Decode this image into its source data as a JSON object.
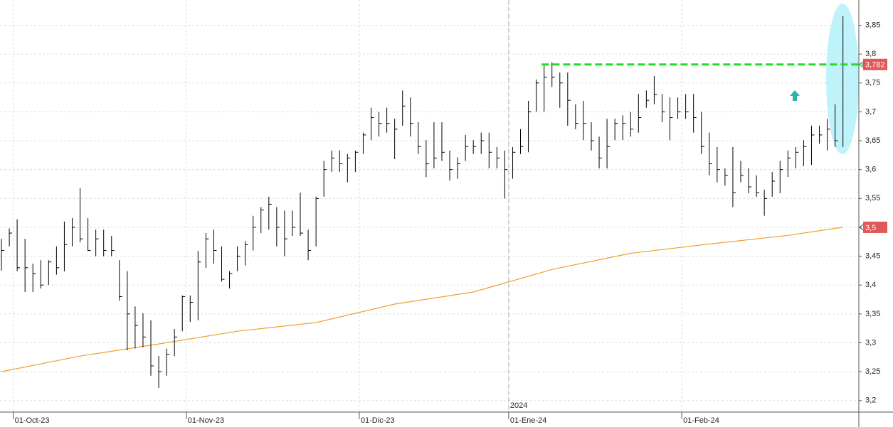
{
  "chart_data": {
    "type": "hlc",
    "color": "#000000",
    "high": [
      3.48,
      3.498,
      3.514,
      3.48,
      3.437,
      3.443,
      3.443,
      3.467,
      3.51,
      3.516,
      3.568,
      3.516,
      3.496,
      3.496,
      3.485,
      3.443,
      3.424,
      3.363,
      3.351,
      3.339,
      3.277,
      3.29,
      3.324,
      3.382,
      3.382,
      3.459,
      3.49,
      3.496,
      3.467,
      3.424,
      3.467,
      3.476,
      3.52,
      3.535,
      3.553,
      3.535,
      3.529,
      3.529,
      3.56,
      3.496,
      3.553,
      3.615,
      3.633,
      3.633,
      3.627,
      3.633,
      3.664,
      3.707,
      3.7,
      3.707,
      3.688,
      3.737,
      3.725,
      3.682,
      3.651,
      3.682,
      3.682,
      3.633,
      3.621,
      3.66,
      3.651,
      3.664,
      3.664,
      3.639,
      3.633,
      3.639,
      3.67,
      3.719,
      3.756,
      3.78,
      3.786,
      3.768,
      3.768,
      3.713,
      3.719,
      3.682,
      3.657,
      3.688,
      3.688,
      3.694,
      3.7,
      3.731,
      3.737,
      3.762,
      3.731,
      3.725,
      3.725,
      3.731,
      3.731,
      3.7,
      3.664,
      3.639,
      3.602,
      3.639,
      3.615,
      3.602,
      3.59,
      3.565,
      3.596,
      3.615,
      3.633,
      3.639,
      3.651,
      3.676,
      3.676,
      3.688,
      3.713,
      3.866
    ],
    "low": [
      3.425,
      3.467,
      3.424,
      3.388,
      3.388,
      3.394,
      3.4,
      3.418,
      3.424,
      3.467,
      3.474,
      3.459,
      3.45,
      3.45,
      3.45,
      3.373,
      3.287,
      3.29,
      3.292,
      3.243,
      3.222,
      3.243,
      3.277,
      3.32,
      3.336,
      3.339,
      3.43,
      3.437,
      3.406,
      3.394,
      3.424,
      3.434,
      3.46,
      3.49,
      3.496,
      3.467,
      3.45,
      3.485,
      3.485,
      3.443,
      3.467,
      3.553,
      3.596,
      3.596,
      3.578,
      3.596,
      3.627,
      3.651,
      3.657,
      3.664,
      3.618,
      3.676,
      3.657,
      3.627,
      3.587,
      3.602,
      3.615,
      3.581,
      3.584,
      3.615,
      3.627,
      3.627,
      3.602,
      3.602,
      3.55,
      3.584,
      3.627,
      3.63,
      3.7,
      3.7,
      3.743,
      3.707,
      3.676,
      3.67,
      3.651,
      3.633,
      3.602,
      3.602,
      3.651,
      3.651,
      3.657,
      3.664,
      3.707,
      3.713,
      3.682,
      3.651,
      3.688,
      3.688,
      3.664,
      3.627,
      3.59,
      3.578,
      3.572,
      3.535,
      3.578,
      3.559,
      3.553,
      3.52,
      3.553,
      3.559,
      3.587,
      3.602,
      3.606,
      3.608,
      3.645,
      3.633,
      3.639,
      3.639
    ],
    "close": [
      3.46,
      3.49,
      3.43,
      3.43,
      3.42,
      3.4,
      3.44,
      3.43,
      3.47,
      3.5,
      3.48,
      3.46,
      3.48,
      3.46,
      3.46,
      3.38,
      3.35,
      3.33,
      3.31,
      3.26,
      3.25,
      3.28,
      3.31,
      3.38,
      3.37,
      3.44,
      3.48,
      3.46,
      3.41,
      3.42,
      3.45,
      3.47,
      3.5,
      3.53,
      3.54,
      3.5,
      3.48,
      3.5,
      3.49,
      3.46,
      3.55,
      3.6,
      3.62,
      3.61,
      3.62,
      3.63,
      3.66,
      3.69,
      3.68,
      3.68,
      3.67,
      3.71,
      3.68,
      3.64,
      3.61,
      3.62,
      3.63,
      3.6,
      3.61,
      3.64,
      3.64,
      3.65,
      3.63,
      3.62,
      3.6,
      3.63,
      3.64,
      3.7,
      3.75,
      3.76,
      3.76,
      3.75,
      3.72,
      3.68,
      3.68,
      3.65,
      3.62,
      3.64,
      3.68,
      3.68,
      3.67,
      3.69,
      3.72,
      3.73,
      3.7,
      3.69,
      3.7,
      3.7,
      3.69,
      3.64,
      3.61,
      3.6,
      3.59,
      3.56,
      3.59,
      3.57,
      3.56,
      3.55,
      3.58,
      3.6,
      3.62,
      3.63,
      3.64,
      3.66,
      3.66,
      3.67,
      3.65,
      3.782
    ],
    "moving_average": {
      "color": "#f0a030",
      "x": [
        0,
        10,
        20,
        30,
        40,
        50,
        60,
        70,
        80,
        90,
        100,
        107
      ],
      "values": [
        3.25,
        3.277,
        3.298,
        3.32,
        3.335,
        3.367,
        3.388,
        3.427,
        3.455,
        3.471,
        3.486,
        3.5
      ]
    },
    "resistance": {
      "value": 3.782,
      "color": "#22dd22",
      "xlim": [
        68.7,
        109.6
      ]
    },
    "markers": [
      {
        "value": 3.782,
        "label": "3,782"
      },
      {
        "value": 3.5,
        "label": "3,5"
      }
    ],
    "marker_color": "#e05858",
    "xlim": [
      0,
      109.2
    ],
    "xticks": [
      {
        "value": 1.5,
        "label": "01-Oct-23"
      },
      {
        "value": 23.5,
        "label": "01-Nov-23"
      },
      {
        "value": 45.5,
        "label": "01-Dic-23"
      },
      {
        "value": 64.5,
        "label": "01-Ene-24"
      },
      {
        "value": 86.5,
        "label": "01-Feb-24"
      }
    ],
    "year_divider": {
      "value": 64.5,
      "label": "2024"
    },
    "ylim": [
      3.18,
      3.89
    ],
    "yticks": [
      {
        "value": 3.2,
        "label": "3,2"
      },
      {
        "value": 3.25,
        "label": "3,25"
      },
      {
        "value": 3.3,
        "label": "3,3"
      },
      {
        "value": 3.35,
        "label": "3,35"
      },
      {
        "value": 3.4,
        "label": "3,4"
      },
      {
        "value": 3.45,
        "label": "3,45"
      },
      {
        "value": 3.5,
        "label": "3,5"
      },
      {
        "value": 3.55,
        "label": "3,55"
      },
      {
        "value": 3.6,
        "label": "3,6"
      },
      {
        "value": 3.65,
        "label": "3,65"
      },
      {
        "value": 3.7,
        "label": "3,7"
      },
      {
        "value": 3.75,
        "label": "3,75"
      },
      {
        "value": 3.8,
        "label": "3,8"
      },
      {
        "value": 3.85,
        "label": "3,85"
      }
    ],
    "grid": true
  }
}
